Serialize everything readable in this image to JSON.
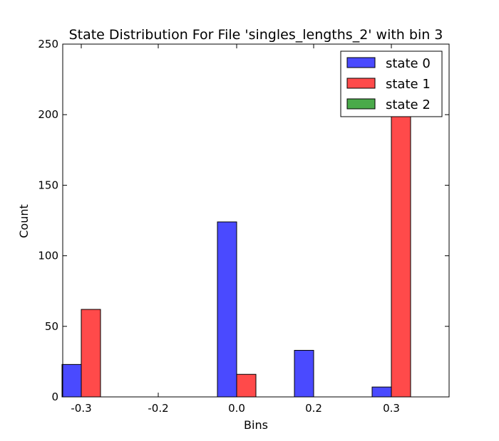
{
  "chart_data": {
    "type": "bar",
    "title": "State Distribution For File 'singles_lengths_2' with bin 3",
    "xlabel": "Bins",
    "ylabel": "Count",
    "categories": [
      "-0.3",
      "-0.2",
      "0.0",
      "0.2",
      "0.3"
    ],
    "ylim": [
      0,
      250
    ],
    "yticks": [
      0,
      50,
      100,
      150,
      200,
      250
    ],
    "series": [
      {
        "name": "state 0",
        "color": "#4a4aff",
        "values": [
          23,
          0,
          124,
          33,
          7
        ]
      },
      {
        "name": "state 1",
        "color": "#ff4a4a",
        "values": [
          62,
          0,
          16,
          0,
          200
        ]
      },
      {
        "name": "state 2",
        "color": "#4aaa4a",
        "values": [
          0,
          0,
          0,
          0,
          0
        ]
      }
    ],
    "legend_position": "top-right",
    "grid": false
  }
}
